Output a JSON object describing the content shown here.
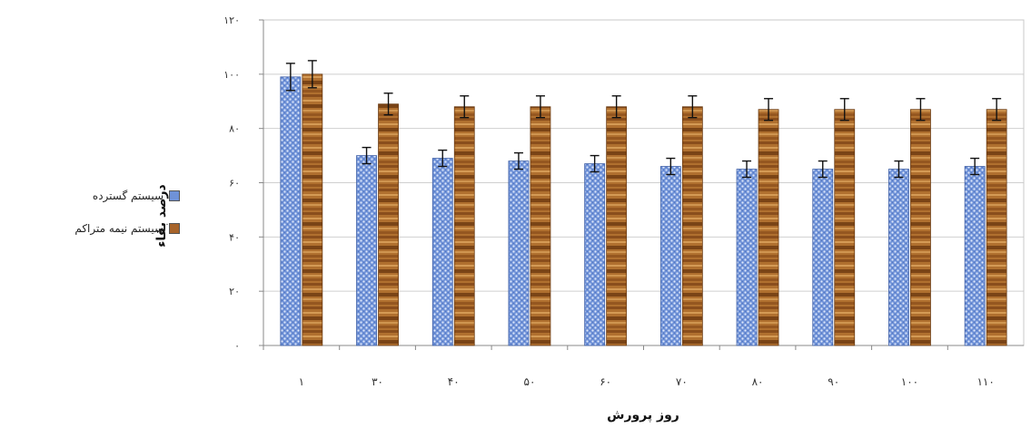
{
  "chart_data": {
    "type": "bar",
    "title": "",
    "xlabel": "روز پرورش",
    "ylabel": "درصد بقاء",
    "categories": [
      "۱",
      "۳۰",
      "۴۰",
      "۵۰",
      "۶۰",
      "۷۰",
      "۸۰",
      "۹۰",
      "۱۰۰",
      "۱۱۰"
    ],
    "series": [
      {
        "name": "سیستم گسترده",
        "values": [
          99,
          70,
          69,
          68,
          67,
          66,
          65,
          65,
          65,
          66
        ],
        "errors": [
          5,
          3,
          3,
          3,
          3,
          3,
          3,
          3,
          3,
          3
        ],
        "color": "#6f92d8"
      },
      {
        "name": "سیستم نیمه متراکم",
        "values": [
          100,
          89,
          88,
          88,
          88,
          88,
          87,
          87,
          87,
          87
        ],
        "errors": [
          5,
          4,
          4,
          4,
          4,
          4,
          4,
          4,
          4,
          4
        ],
        "color": "#a8642a"
      }
    ],
    "ylim": [
      0,
      120
    ],
    "yticks": [
      0,
      20,
      40,
      60,
      80,
      100,
      120
    ],
    "ytick_labels": [
      "۰",
      "۲۰",
      "۴۰",
      "۶۰",
      "۸۰",
      "۱۰۰",
      "۱۲۰"
    ],
    "grid": true,
    "legend_position": "left"
  }
}
